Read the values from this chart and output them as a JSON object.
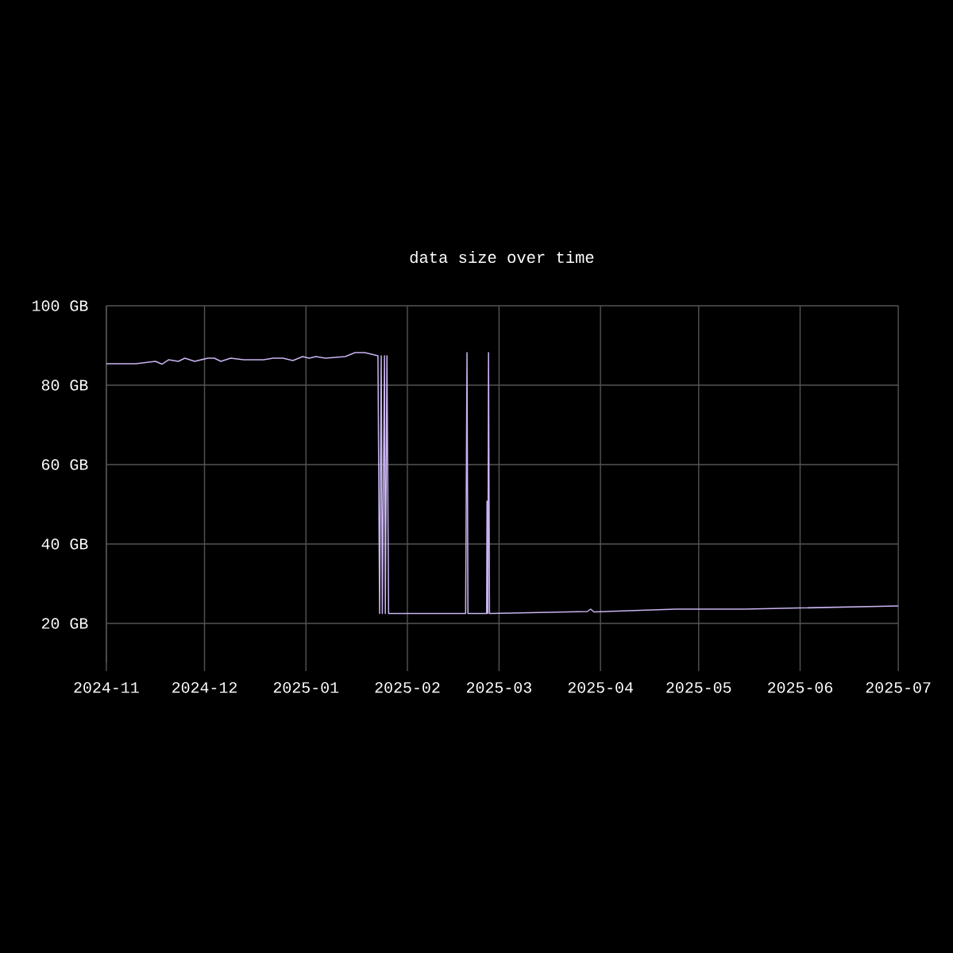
{
  "chart_data": {
    "type": "line",
    "title": "data size over time",
    "x": [
      "2024-11-01",
      "2024-11-10",
      "2024-11-16",
      "2024-11-18",
      "2024-11-20",
      "2024-11-23",
      "2024-11-25",
      "2024-11-28",
      "2024-12-02",
      "2024-12-04",
      "2024-12-06",
      "2024-12-09",
      "2024-12-13",
      "2024-12-19",
      "2024-12-22",
      "2024-12-25",
      "2024-12-28",
      "2024-12-31",
      "2025-01-02",
      "2025-01-04",
      "2025-01-07",
      "2025-01-13",
      "2025-01-16",
      "2025-01-19",
      "2025-01-23T00:00",
      "2025-01-23T12:00",
      "2025-01-24T00:00",
      "2025-01-24T08:00",
      "2025-01-25T00:00",
      "2025-01-25T06:00",
      "2025-01-25T18:00",
      "2025-01-26T06:00",
      "2025-02-18T19:00",
      "2025-02-19T05:00",
      "2025-02-19T12:00",
      "2025-02-25T05:00",
      "2025-02-25T08:00",
      "2025-02-25T14:00",
      "2025-02-25T19:00",
      "2025-02-26T02:00",
      "2025-02-26T10:00",
      "2025-03-28",
      "2025-03-29",
      "2025-03-30",
      "2025-04-24",
      "2025-05-15",
      "2025-07-01"
    ],
    "series": [
      {
        "color": "#c8b4f0",
        "values": [
          85.4,
          85.4,
          86.0,
          85.3,
          86.4,
          86.0,
          86.8,
          86.0,
          86.8,
          86.8,
          86.0,
          86.8,
          86.4,
          86.4,
          86.8,
          86.8,
          86.2,
          87.2,
          86.8,
          87.2,
          86.8,
          87.2,
          88.2,
          88.2,
          87.4,
          22.5,
          87.4,
          22.5,
          87.4,
          22.5,
          87.4,
          22.5,
          22.5,
          88.2,
          22.5,
          22.5,
          50.8,
          22.5,
          88.2,
          22.5,
          22.5,
          23.0,
          23.6,
          22.9,
          23.6,
          23.6,
          24.4
        ]
      }
    ],
    "xlim": [
      "2024-11",
      "2025-07"
    ],
    "xticks": [
      "2024-11",
      "2024-12",
      "2025-01",
      "2025-02",
      "2025-03",
      "2025-04",
      "2025-05",
      "2025-06",
      "2025-07"
    ],
    "ylim": [
      10,
      100
    ],
    "yticks": [
      {
        "value": 20,
        "label": "20 GB"
      },
      {
        "value": 40,
        "label": "40 GB"
      },
      {
        "value": 60,
        "label": "60 GB"
      },
      {
        "value": 80,
        "label": "80 GB"
      },
      {
        "value": 100,
        "label": "100 GB"
      }
    ],
    "grid": true
  }
}
